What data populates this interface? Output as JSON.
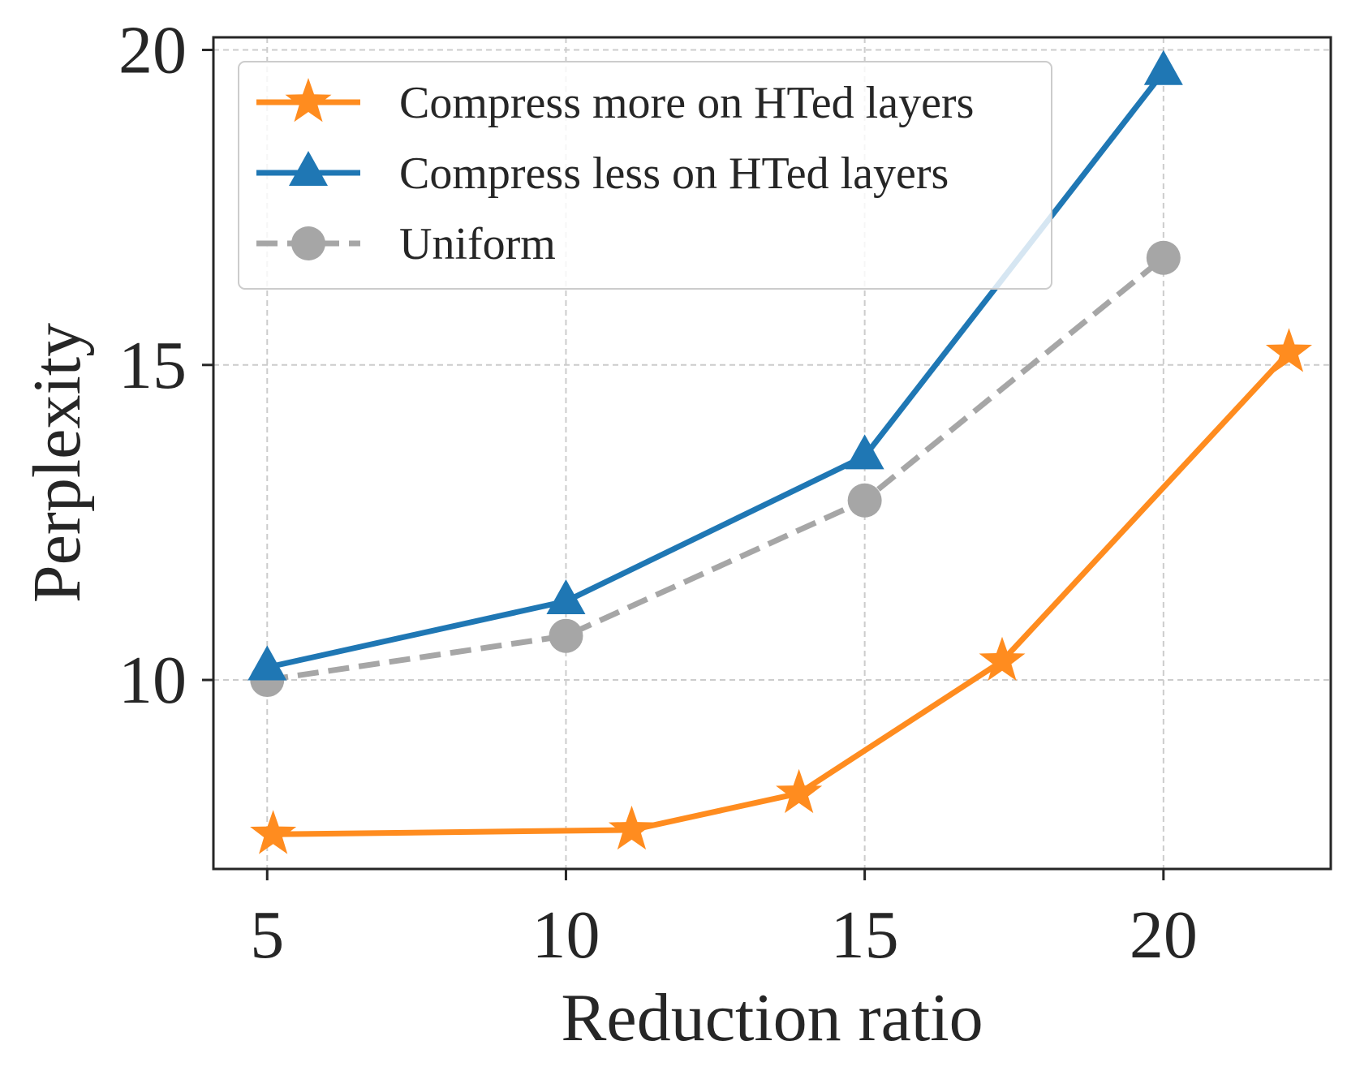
{
  "chart_data": {
    "type": "line",
    "xlabel": "Reduction ratio",
    "ylabel": "Perplexity",
    "xlim": [
      4.1,
      22.8
    ],
    "ylim": [
      7.0,
      20.2
    ],
    "xticks": [
      5,
      10,
      15,
      20
    ],
    "yticks": [
      10,
      15,
      20
    ],
    "xtick_labels": [
      "5",
      "10",
      "15",
      "20"
    ],
    "ytick_labels": [
      "10",
      "15",
      "20"
    ],
    "grid": true,
    "legend_position": "top-left",
    "series": [
      {
        "name": "Compress more on HTed layers",
        "color": "#ff8c1f",
        "marker": "star",
        "linestyle": "solid",
        "x": [
          5.1,
          11.1,
          13.9,
          17.3,
          22.1
        ],
        "y": [
          7.55,
          7.62,
          8.2,
          10.3,
          15.2
        ]
      },
      {
        "name": "Compress less on HTed layers",
        "color": "#1f77b4",
        "marker": "triangle",
        "linestyle": "solid",
        "x": [
          5,
          10,
          15,
          20
        ],
        "y": [
          10.2,
          11.25,
          13.55,
          19.65
        ]
      },
      {
        "name": "Uniform",
        "color": "#a6a6a6",
        "marker": "circle",
        "linestyle": "dashed",
        "x": [
          5,
          10,
          15,
          20
        ],
        "y": [
          10.0,
          10.7,
          12.85,
          16.7
        ]
      }
    ]
  }
}
